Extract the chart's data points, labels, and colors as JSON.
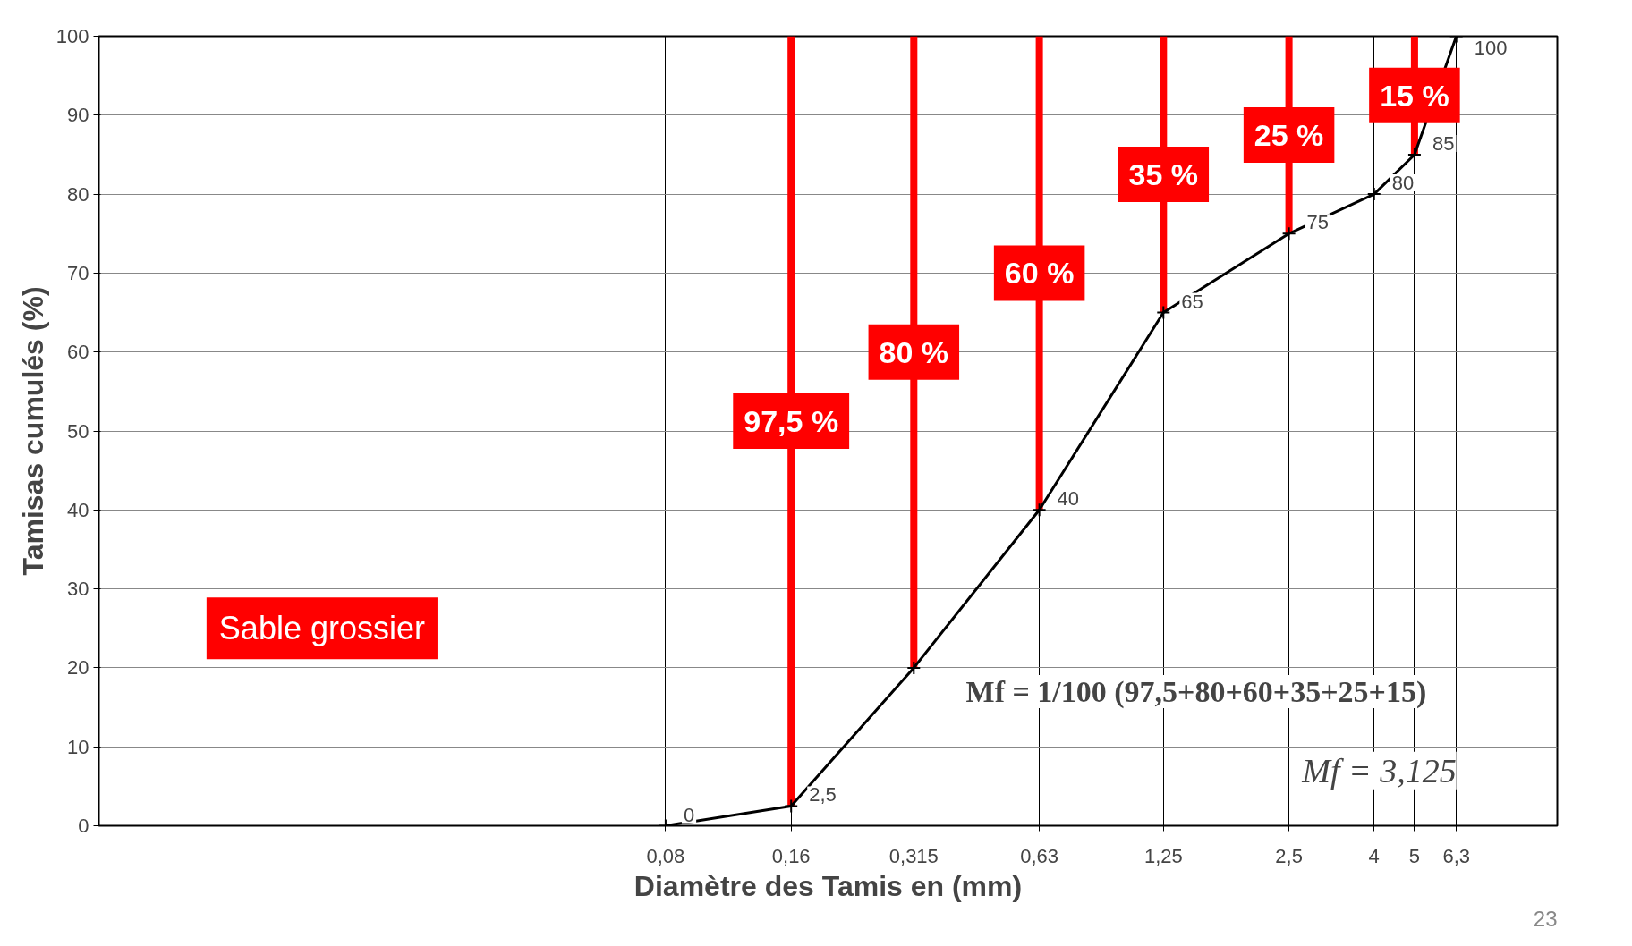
{
  "chart_data": {
    "type": "line",
    "xlabel": "Diamètre des Tamis en (mm)",
    "ylabel": "Tamisas cumulés (%)",
    "x": [
      0.08,
      0.16,
      0.315,
      0.63,
      1.25,
      2.5,
      4,
      5,
      6.3
    ],
    "log": "x",
    "xlim": [
      0.0035,
      11
    ],
    "ylim": [
      0,
      100
    ],
    "xticks": [
      {
        "value": 0.08,
        "label": "0,08"
      },
      {
        "value": 0.16,
        "label": "0,16"
      },
      {
        "value": 0.315,
        "label": "0,315"
      },
      {
        "value": 0.63,
        "label": "0,63"
      },
      {
        "value": 1.25,
        "label": "1,25"
      },
      {
        "value": 2.5,
        "label": "2,5"
      },
      4,
      5,
      {
        "value": 6.3,
        "label": "6,3"
      }
    ],
    "yticks": [
      0,
      10,
      20,
      30,
      40,
      50,
      60,
      70,
      80,
      90,
      100
    ],
    "grid": true,
    "marker": "cross",
    "series": [
      {
        "color": "#000000",
        "values": [
          0,
          2.5,
          20,
          40,
          65,
          75,
          80,
          85,
          100
        ],
        "value_labels": [
          "0",
          "2,5",
          null,
          "40",
          "65",
          "75",
          "80",
          "85",
          "100"
        ]
      },
      {
        "type": "bar",
        "color": "#ff0000",
        "x": [
          0.16,
          0.315,
          0.63,
          1.25,
          2.5,
          5
        ],
        "base": [
          2.5,
          20,
          40,
          65,
          75,
          85
        ],
        "values": [
          97.5,
          80,
          60,
          35,
          25,
          15
        ],
        "value_labels": [
          "97,5 %",
          "80 %",
          "60 %",
          "35 %",
          "25 %",
          "15 %"
        ]
      }
    ],
    "annotations": [
      "Sable grossier",
      "Mf = 1/100 (97,5+80+60+35+25+15)",
      "Mf = 3,125",
      "23"
    ]
  }
}
